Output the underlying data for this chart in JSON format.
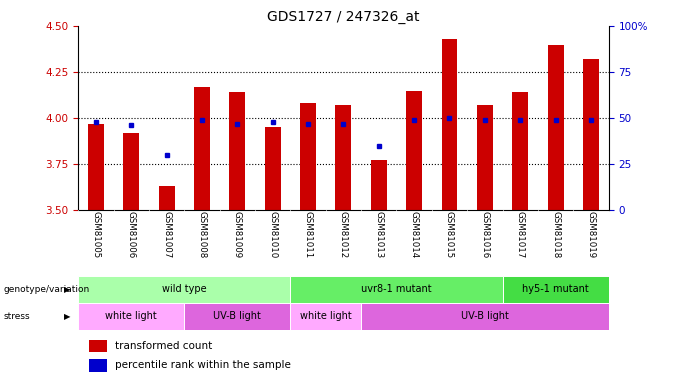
{
  "title": "GDS1727 / 247326_at",
  "samples": [
    "GSM81005",
    "GSM81006",
    "GSM81007",
    "GSM81008",
    "GSM81009",
    "GSM81010",
    "GSM81011",
    "GSM81012",
    "GSM81013",
    "GSM81014",
    "GSM81015",
    "GSM81016",
    "GSM81017",
    "GSM81018",
    "GSM81019"
  ],
  "bar_values": [
    3.97,
    3.92,
    3.63,
    4.17,
    4.14,
    3.95,
    4.08,
    4.07,
    3.77,
    4.15,
    4.43,
    4.07,
    4.14,
    4.4,
    4.32
  ],
  "dot_values": [
    48,
    46,
    30,
    49,
    47,
    48,
    47,
    47,
    35,
    49,
    50,
    49,
    49,
    49,
    49
  ],
  "ylim_left": [
    3.5,
    4.5
  ],
  "ylim_right": [
    0,
    100
  ],
  "yticks_left": [
    3.5,
    3.75,
    4.0,
    4.25,
    4.5
  ],
  "yticks_right": [
    0,
    25,
    50,
    75,
    100
  ],
  "bar_color": "#cc0000",
  "dot_color": "#0000cc",
  "bar_bottom": 3.5,
  "genotype_groups": [
    {
      "label": "wild type",
      "start": 0,
      "end": 5,
      "color": "#aaffaa"
    },
    {
      "label": "uvr8-1 mutant",
      "start": 6,
      "end": 11,
      "color": "#66ee66"
    },
    {
      "label": "hy5-1 mutant",
      "start": 12,
      "end": 14,
      "color": "#44dd44"
    }
  ],
  "stress_groups": [
    {
      "label": "white light",
      "start": 0,
      "end": 2,
      "color": "#ffaaff"
    },
    {
      "label": "UV-B light",
      "start": 3,
      "end": 5,
      "color": "#dd66dd"
    },
    {
      "label": "white light",
      "start": 6,
      "end": 7,
      "color": "#ffaaff"
    },
    {
      "label": "UV-B light",
      "start": 8,
      "end": 14,
      "color": "#dd66dd"
    }
  ],
  "legend_items": [
    {
      "label": "transformed count",
      "color": "#cc0000"
    },
    {
      "label": "percentile rank within the sample",
      "color": "#0000cc"
    }
  ],
  "background_color": "#ffffff",
  "tick_color_left": "#cc0000",
  "tick_color_right": "#0000cc",
  "grid_ticks": [
    3.75,
    4.0,
    4.25
  ]
}
